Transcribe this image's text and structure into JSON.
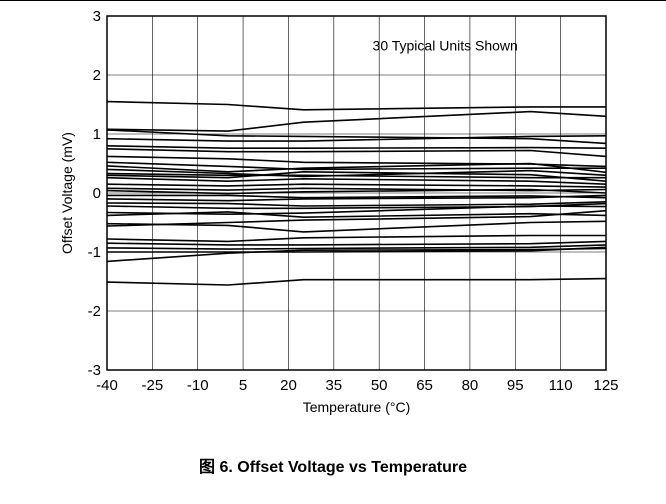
{
  "chart_data": {
    "type": "line",
    "xlabel": "Temperature (°C)",
    "ylabel": "Offset Voltage (mV)",
    "annotation": "30 Typical Units Shown",
    "xlim": [
      -40,
      125
    ],
    "ylim": [
      -3,
      3
    ],
    "xticks": [
      -40,
      -25,
      -10,
      5,
      20,
      35,
      50,
      65,
      80,
      95,
      110,
      125
    ],
    "yticks": [
      3,
      2,
      1,
      0,
      -1,
      -2,
      -3
    ],
    "grid": true,
    "legend": "none",
    "x": [
      -40,
      0,
      25,
      100,
      125
    ],
    "series": [
      {
        "values": [
          1.55,
          1.5,
          1.41,
          1.46,
          1.46
        ]
      },
      {
        "values": [
          1.08,
          1.05,
          1.2,
          1.38,
          1.3
        ]
      },
      {
        "values": [
          1.07,
          0.97,
          0.96,
          0.92,
          0.84
        ]
      },
      {
        "values": [
          0.92,
          0.88,
          0.88,
          0.96,
          0.97
        ]
      },
      {
        "values": [
          0.8,
          0.76,
          0.76,
          0.77,
          0.76
        ]
      },
      {
        "values": [
          0.75,
          0.7,
          0.7,
          0.72,
          0.62
        ]
      },
      {
        "values": [
          0.62,
          0.58,
          0.52,
          0.49,
          0.45
        ]
      },
      {
        "values": [
          0.52,
          0.45,
          0.4,
          0.42,
          0.42
        ]
      },
      {
        "values": [
          0.46,
          0.36,
          0.42,
          0.5,
          0.35
        ]
      },
      {
        "values": [
          0.33,
          0.3,
          0.3,
          0.26,
          0.26
        ]
      },
      {
        "values": [
          0.3,
          0.26,
          0.36,
          0.31,
          0.2
        ]
      },
      {
        "values": [
          0.26,
          0.2,
          0.24,
          0.2,
          0.15
        ]
      },
      {
        "values": [
          0.15,
          0.12,
          0.15,
          0.12,
          0.1
        ]
      },
      {
        "values": [
          0.08,
          0.05,
          0.08,
          0.04,
          0.06
        ]
      },
      {
        "values": [
          0.04,
          -0.01,
          0.02,
          0.06,
          0.0
        ]
      },
      {
        "values": [
          -0.04,
          -0.04,
          -0.08,
          -0.05,
          -0.08
        ]
      },
      {
        "values": [
          -0.1,
          -0.13,
          -0.1,
          -0.08,
          -0.04
        ]
      },
      {
        "values": [
          -0.17,
          -0.18,
          -0.22,
          -0.19,
          -0.15
        ]
      },
      {
        "values": [
          -0.22,
          -0.26,
          -0.26,
          -0.23,
          -0.18
        ]
      },
      {
        "values": [
          -0.33,
          -0.36,
          -0.34,
          -0.22,
          -0.23
        ]
      },
      {
        "values": [
          -0.38,
          -0.32,
          -0.41,
          -0.35,
          -0.38
        ]
      },
      {
        "values": [
          -0.52,
          -0.55,
          -0.66,
          -0.5,
          -0.48
        ]
      },
      {
        "values": [
          -0.56,
          -0.5,
          -0.46,
          -0.4,
          -0.3
        ]
      },
      {
        "values": [
          -0.78,
          -0.82,
          -0.76,
          -0.72,
          -0.72
        ]
      },
      {
        "values": [
          -0.85,
          -0.88,
          -0.88,
          -0.86,
          -0.82
        ]
      },
      {
        "values": [
          -0.93,
          -0.95,
          -0.94,
          -0.92,
          -0.88
        ]
      },
      {
        "values": [
          -1.0,
          -1.0,
          -1.0,
          -0.98,
          -0.92
        ]
      },
      {
        "values": [
          -1.16,
          -1.02,
          -0.97,
          -0.96,
          -0.94
        ]
      },
      {
        "values": [
          -1.51,
          -1.56,
          -1.47,
          -1.47,
          -1.45
        ]
      },
      {
        "values": [
          0.4,
          0.33,
          0.28,
          0.38,
          0.3
        ]
      }
    ]
  },
  "caption": {
    "figure_label": "图 6.",
    "title": "Offset Voltage vs Temperature"
  }
}
